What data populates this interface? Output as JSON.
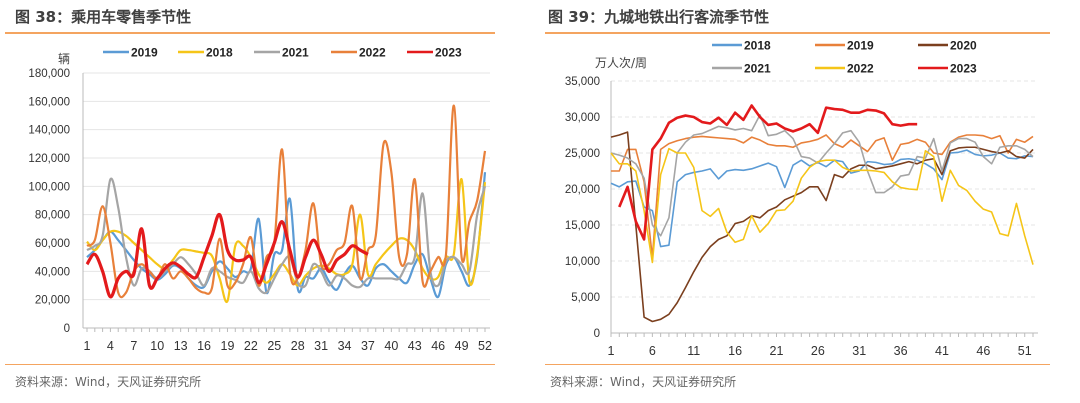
{
  "left": {
    "title": "图 38：乘用车零售季节性",
    "source": "资料来源：Wind，天风证券研究所"
  },
  "right": {
    "title": "图 39：九城地铁出行客流季节性",
    "source": "资料来源：Wind，天风证券研究所"
  },
  "chart_data": [
    {
      "type": "line",
      "title": "图 38：乘用车零售季节性",
      "ylabel": "辆",
      "xlabel": "",
      "ylim": [
        0,
        180000
      ],
      "yticks": [
        "0",
        "20,000",
        "40,000",
        "60,000",
        "80,000",
        "100,000",
        "120,000",
        "140,000",
        "160,000",
        "180,000"
      ],
      "xticks": [
        "1",
        "4",
        "7",
        "10",
        "13",
        "16",
        "19",
        "22",
        "25",
        "28",
        "31",
        "34",
        "37",
        "40",
        "43",
        "46",
        "49",
        "52"
      ],
      "x_range": [
        1,
        52
      ],
      "smooth": true,
      "grid": true,
      "legend_position": "top",
      "series": [
        {
          "name": "2019",
          "color": "#5b9bd5",
          "values_thousands": [
            50,
            55,
            62,
            68,
            62,
            55,
            48,
            42,
            38,
            34,
            38,
            44,
            42,
            35,
            30,
            29,
            40,
            47,
            42,
            36,
            40,
            42,
            77,
            25,
            52,
            55,
            91,
            28,
            36,
            35,
            42,
            33,
            27,
            38,
            44,
            35,
            30,
            42,
            45,
            40,
            35,
            32,
            45,
            52,
            35,
            22,
            45,
            50,
            40,
            30,
            50,
            110
          ]
        },
        {
          "name": "2018",
          "color": "#f5c518",
          "values_thousands": [
            61,
            55,
            62,
            68,
            68,
            65,
            60,
            55,
            50,
            45,
            42,
            48,
            55,
            55,
            54,
            53,
            51,
            35,
            19,
            58,
            58,
            50,
            38,
            32,
            38,
            45,
            38,
            30,
            37,
            42,
            44,
            42,
            38,
            38,
            45,
            80,
            38,
            45,
            52,
            58,
            63,
            62,
            55,
            42,
            35,
            36,
            50,
            52,
            105,
            33,
            52,
            103
          ]
        },
        {
          "name": "2021",
          "color": "#a5a5a5",
          "values_thousands": [
            55,
            58,
            65,
            105,
            85,
            50,
            30,
            42,
            40,
            35,
            40,
            45,
            50,
            45,
            38,
            30,
            42,
            40,
            36,
            34,
            32,
            40,
            28,
            25,
            35,
            45,
            50,
            32,
            30,
            45,
            40,
            30,
            37,
            35,
            30,
            29,
            35,
            35,
            35,
            35,
            35,
            45,
            50,
            95,
            40,
            30,
            47,
            50,
            45,
            40,
            80,
            100
          ]
        },
        {
          "name": "2022",
          "color": "#e8803a",
          "values_thousands": [
            58,
            62,
            86,
            60,
            25,
            25,
            40,
            45,
            40,
            35,
            45,
            35,
            40,
            35,
            28,
            25,
            28,
            63,
            30,
            32,
            45,
            64,
            30,
            50,
            60,
            126,
            40,
            35,
            55,
            88,
            45,
            45,
            55,
            60,
            86,
            35,
            55,
            65,
            130,
            110,
            50,
            52,
            105,
            33,
            40,
            50,
            52,
            157,
            50,
            75,
            90,
            125
          ]
        },
        {
          "name": "2023",
          "color": "#e31a1c",
          "values_thousands": [
            45,
            52,
            40,
            22,
            35,
            40,
            38,
            70,
            30,
            35,
            42,
            46,
            43,
            38,
            36,
            50,
            65,
            80,
            55,
            48,
            48,
            50,
            32,
            45,
            60,
            75,
            55,
            36,
            50,
            62,
            52,
            40,
            48,
            52,
            58,
            55,
            52
          ]
        }
      ]
    },
    {
      "type": "line",
      "title": "图 39：九城地铁出行客流季节性",
      "ylabel": "万人次/周",
      "xlabel": "",
      "ylim": [
        0,
        35000
      ],
      "yticks": [
        "0",
        "5,000",
        "10,000",
        "15,000",
        "20,000",
        "25,000",
        "30,000",
        "35,000"
      ],
      "xticks": [
        "1",
        "6",
        "11",
        "16",
        "21",
        "26",
        "31",
        "36",
        "41",
        "46",
        "51"
      ],
      "x_range": [
        1,
        52
      ],
      "smooth": false,
      "grid": true,
      "legend_position": "top",
      "series": [
        {
          "name": "2018",
          "color": "#5b9bd5",
          "values_thousands": [
            20.8,
            20.3,
            21,
            21.1,
            17.5,
            17,
            12,
            12.2,
            21,
            22,
            22.3,
            22.5,
            22.8,
            21.4,
            22.5,
            22.7,
            22.6,
            22.8,
            23.2,
            23.6,
            23.1,
            20.2,
            23.3,
            24,
            23.2,
            23.7,
            23.1,
            24,
            23.8,
            22.2,
            22.5,
            23.8,
            23.7,
            23.4,
            23.5,
            24.1,
            24.2,
            24,
            23.5,
            22.8,
            21.3,
            25,
            25.1,
            25.4,
            24.8,
            24.6,
            24.7,
            25,
            24.3,
            24.2,
            24.6,
            24.5
          ]
        },
        {
          "name": "2019",
          "color": "#e8803a",
          "values_thousands": [
            22.5,
            22.5,
            25.5,
            25.5,
            21,
            10.5,
            25.5,
            26.3,
            26.7,
            27,
            27.2,
            27.3,
            27.2,
            27.1,
            27,
            26.9,
            26.4,
            27.2,
            26.8,
            26.2,
            26,
            26,
            25.8,
            26.4,
            26.6,
            26.9,
            27.5,
            26.3,
            25.8,
            26.8,
            26,
            25.2,
            26.7,
            27.1,
            24,
            26.2,
            26.4,
            26.9,
            26.5,
            25,
            24.8,
            26.5,
            27.2,
            27.5,
            27.5,
            27.4,
            27,
            27.4,
            25,
            26.9,
            26.5,
            27.3
          ]
        },
        {
          "name": "2020",
          "color": "#7b3f1e",
          "values_thousands": [
            27.2,
            27.5,
            27.9,
            15,
            2.2,
            1.6,
            1.9,
            2.6,
            4.2,
            6.3,
            8.5,
            10.5,
            12,
            13,
            13.5,
            15.2,
            15.5,
            16.3,
            16,
            17,
            17.5,
            18.5,
            19,
            19.5,
            20.3,
            20.3,
            18.4,
            22,
            21.6,
            22.8,
            23.3,
            23.3,
            22.8,
            23,
            23.2,
            23.5,
            23.8,
            23.5,
            24,
            24.2,
            22,
            25.3,
            25.7,
            25.8,
            25.8,
            25.5,
            25.2,
            25,
            25.3,
            24.5,
            24.3,
            25.5
          ]
        },
        {
          "name": "2021",
          "color": "#a5a5a5",
          "values_thousands": [
            25,
            24.7,
            24.3,
            23.5,
            21.5,
            15,
            13.5,
            16,
            25,
            26.5,
            27.5,
            27.7,
            28.2,
            28.7,
            28.5,
            28.2,
            28.4,
            28.1,
            30.3,
            27.4,
            27.6,
            28.1,
            27,
            24.5,
            24.3,
            23.6,
            25,
            26.3,
            27.8,
            28.1,
            26.5,
            22.5,
            19.5,
            19.5,
            20.3,
            21.8,
            22,
            24.5,
            24.3,
            27,
            22.5,
            26.4,
            27,
            27,
            26.5,
            24.5,
            23.5,
            25.8,
            26,
            26,
            25.5,
            24.5
          ]
        },
        {
          "name": "2022",
          "color": "#f5c518",
          "values_thousands": [
            25,
            23.5,
            23.5,
            22.5,
            17,
            9.8,
            22,
            25.6,
            25,
            25,
            23,
            17,
            16.2,
            17.3,
            14,
            12.6,
            13,
            16.3,
            14,
            15.2,
            17,
            17.1,
            18.3,
            21.5,
            23,
            23.8,
            24,
            24,
            23,
            22.5,
            22.6,
            22.6,
            22.5,
            22.3,
            21,
            20.2,
            20,
            19.9,
            25.3,
            24.5,
            18.3,
            22.6,
            20.5,
            19.8,
            18.3,
            17.2,
            16.8,
            13.8,
            13.5,
            18,
            13.5,
            9.5
          ]
        },
        {
          "name": "2023",
          "color": "#e31a1c",
          "values_thousands": [
            null,
            17.5,
            20.3,
            15.5,
            13,
            25.5,
            27,
            29.2,
            29.9,
            30.2,
            30,
            29.3,
            29.1,
            29.9,
            28.9,
            30.6,
            29.6,
            31.6,
            30,
            28.9,
            29.1,
            28.4,
            28,
            28.4,
            29,
            27.8,
            31.3,
            31.1,
            31,
            30.6,
            30.6,
            31,
            30.9,
            30.5,
            29,
            28.8,
            29,
            29
          ]
        }
      ]
    }
  ]
}
